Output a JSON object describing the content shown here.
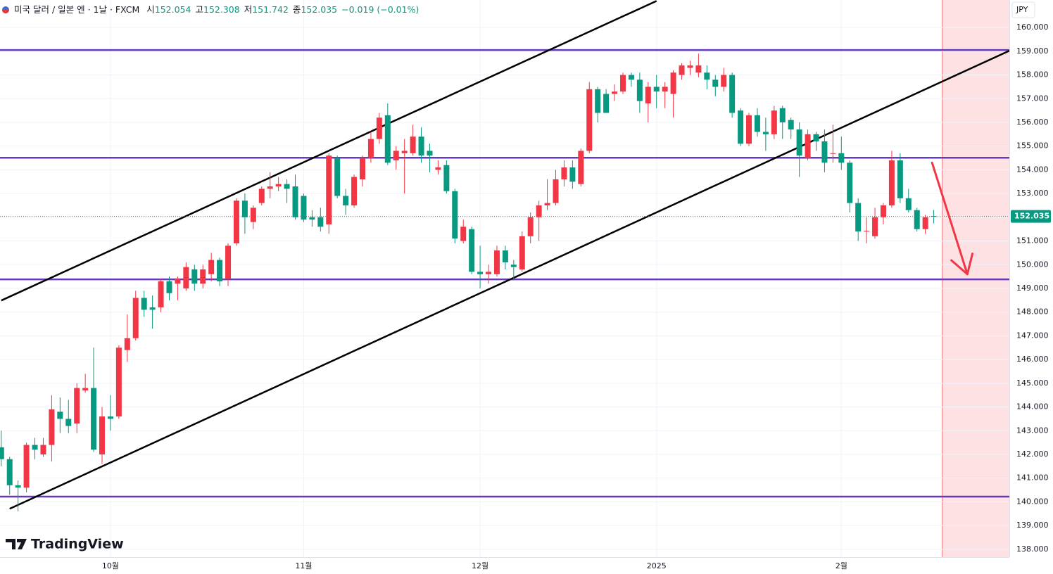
{
  "chart_data": {
    "type": "candlestick",
    "title": "미국 달러 / 일본 엔 · 1날 · FXCM",
    "legend": [
      {
        "label": "시",
        "value": 152.054
      },
      {
        "label": "고",
        "value": 152.308
      },
      {
        "label": "저",
        "value": 151.742
      },
      {
        "label": "종",
        "value": 152.035
      }
    ],
    "change": "−0.019 (−0.01%)",
    "currency": "JPY",
    "last_price": 152.035,
    "watermark": "TradingView",
    "up_color": "#f23645",
    "down_color": "#089981",
    "categories": [
      null,
      null,
      null,
      null,
      null,
      null,
      null,
      null,
      null,
      null,
      null,
      null,
      null,
      "10월",
      null,
      null,
      null,
      null,
      null,
      null,
      null,
      null,
      null,
      null,
      null,
      null,
      null,
      null,
      null,
      null,
      null,
      null,
      null,
      null,
      null,
      null,
      "11월",
      null,
      null,
      null,
      null,
      null,
      null,
      null,
      null,
      null,
      null,
      null,
      null,
      null,
      null,
      null,
      null,
      null,
      null,
      null,
      null,
      "12월",
      null,
      null,
      null,
      null,
      null,
      null,
      null,
      null,
      null,
      null,
      null,
      null,
      null,
      null,
      null,
      null,
      null,
      null,
      null,
      null,
      "2025",
      null,
      null,
      null,
      null,
      null,
      null,
      null,
      null,
      null,
      null,
      null,
      null,
      null,
      null,
      null,
      null,
      null,
      null,
      null,
      null,
      null,
      "2월",
      null,
      null,
      null,
      null,
      null,
      null,
      null,
      null,
      null,
      null,
      null
    ],
    "open": [
      142.3,
      141.8,
      140.7,
      140.6,
      142.4,
      142.0,
      142.4,
      143.8,
      143.5,
      143.3,
      144.7,
      144.8,
      142.0,
      143.6,
      143.6,
      146.4,
      146.9,
      148.6,
      148.2,
      148.2,
      149.3,
      149.2,
      149.0,
      149.8,
      149.2,
      149.6,
      150.2,
      149.4,
      150.9,
      152.7,
      151.8,
      152.6,
      153.2,
      153.3,
      153.4,
      153.3,
      152.9,
      152.0,
      152.0,
      151.7,
      154.5,
      152.9,
      152.5,
      153.6,
      154.5,
      155.3,
      156.3,
      154.4,
      154.7,
      154.7,
      155.4,
      154.8,
      154.0,
      154.2,
      153.1,
      151.0,
      151.5,
      149.7,
      149.6,
      149.6,
      150.6,
      150.0,
      149.8,
      151.2,
      152.0,
      152.5,
      152.6,
      153.6,
      154.1,
      153.4,
      154.8,
      157.4,
      157.2,
      157.2,
      157.3,
      158.0,
      157.8,
      156.8,
      157.5,
      157.3,
      157.2,
      158.0,
      158.3,
      158.1,
      158.1,
      157.8,
      157.5,
      158.0,
      156.5,
      155.1,
      156.3,
      155.6,
      155.5,
      156.6,
      156.1,
      155.7,
      154.5,
      155.5,
      155.2,
      154.7,
      154.7,
      154.3,
      152.6,
      151.4,
      151.2,
      152.0,
      152.5,
      154.4,
      152.8,
      152.3,
      151.5,
      152.054
    ],
    "high": [
      143.0,
      141.9,
      140.9,
      142.5,
      142.7,
      142.7,
      144.5,
      144.4,
      144.3,
      145.0,
      145.4,
      146.5,
      144.0,
      144.5,
      146.6,
      147.9,
      148.9,
      148.9,
      148.7,
      149.4,
      149.5,
      149.5,
      150.1,
      150.0,
      150.0,
      150.5,
      150.3,
      150.9,
      152.8,
      153.0,
      152.5,
      153.3,
      153.9,
      153.7,
      153.6,
      153.8,
      153.0,
      152.3,
      152.4,
      154.7,
      154.6,
      153.2,
      153.8,
      154.6,
      155.6,
      156.4,
      156.8,
      155.0,
      155.3,
      155.9,
      155.8,
      155.1,
      154.4,
      154.4,
      153.2,
      151.9,
      151.6,
      150.8,
      150.0,
      150.8,
      150.8,
      150.2,
      151.4,
      152.2,
      152.7,
      153.6,
      154.0,
      154.4,
      154.4,
      154.9,
      157.7,
      157.5,
      157.4,
      157.6,
      158.1,
      158.1,
      158.1,
      157.7,
      158.0,
      157.7,
      158.2,
      158.5,
      158.6,
      158.9,
      158.4,
      158.0,
      158.3,
      158.1,
      156.6,
      156.4,
      156.6,
      156.2,
      156.7,
      156.7,
      156.2,
      156.0,
      155.7,
      155.6,
      155.7,
      155.9,
      155.4,
      154.4,
      152.8,
      152.0,
      152.4,
      152.6,
      154.8,
      154.7,
      153.2,
      152.4,
      152.1,
      152.308
    ],
    "low": [
      141.5,
      140.3,
      139.6,
      140.4,
      141.8,
      141.9,
      141.7,
      142.9,
      142.9,
      142.9,
      144.6,
      142.1,
      141.6,
      143.0,
      143.5,
      145.9,
      146.8,
      147.8,
      147.3,
      148.0,
      148.5,
      148.5,
      148.9,
      148.9,
      149.0,
      149.3,
      149.1,
      149.1,
      150.8,
      151.3,
      151.5,
      152.5,
      152.8,
      153.1,
      152.6,
      151.9,
      151.8,
      151.6,
      151.4,
      151.3,
      152.8,
      152.1,
      152.4,
      153.3,
      154.3,
      155.1,
      154.2,
      154.0,
      153.0,
      154.6,
      154.3,
      153.9,
      153.8,
      153.0,
      150.9,
      150.9,
      149.6,
      149.0,
      149.2,
      149.5,
      149.8,
      149.4,
      149.7,
      150.9,
      151.0,
      152.3,
      152.5,
      153.3,
      153.2,
      153.3,
      154.7,
      156.0,
      156.4,
      156.9,
      157.2,
      157.5,
      156.4,
      156.0,
      156.6,
      156.6,
      156.2,
      157.8,
      158.0,
      157.9,
      157.4,
      157.1,
      157.3,
      156.2,
      155.0,
      155.0,
      155.4,
      154.8,
      155.3,
      155.3,
      155.3,
      153.7,
      154.4,
      154.8,
      153.9,
      154.3,
      154.0,
      152.2,
      151.0,
      150.9,
      151.1,
      151.7,
      152.4,
      152.6,
      152.2,
      151.4,
      151.3,
      151.742
    ],
    "close": [
      141.8,
      140.7,
      140.6,
      142.4,
      142.2,
      142.4,
      143.9,
      143.5,
      143.2,
      144.8,
      144.8,
      142.2,
      143.6,
      143.5,
      146.5,
      146.9,
      148.6,
      148.1,
      148.1,
      149.3,
      148.8,
      149.4,
      149.9,
      149.2,
      149.8,
      150.2,
      149.3,
      150.8,
      152.7,
      152.0,
      152.4,
      153.2,
      153.3,
      153.4,
      153.2,
      152.0,
      151.9,
      151.9,
      151.6,
      154.6,
      152.9,
      152.5,
      153.7,
      154.5,
      155.3,
      156.2,
      154.3,
      154.8,
      154.8,
      155.4,
      154.6,
      154.6,
      154.1,
      153.1,
      151.1,
      151.6,
      149.7,
      149.6,
      149.7,
      150.6,
      150.1,
      149.9,
      151.2,
      152.0,
      152.5,
      152.6,
      153.6,
      154.1,
      153.5,
      154.8,
      157.4,
      156.4,
      156.4,
      157.3,
      158.0,
      157.8,
      156.9,
      157.5,
      157.3,
      157.5,
      158.1,
      158.4,
      158.4,
      158.4,
      157.8,
      157.5,
      158.0,
      156.4,
      155.1,
      156.3,
      155.6,
      155.5,
      156.5,
      156.0,
      155.7,
      154.6,
      155.5,
      155.2,
      154.3,
      154.7,
      154.3,
      152.6,
      151.4,
      151.43,
      152.0,
      152.5,
      154.4,
      152.8,
      152.3,
      151.5,
      152.0,
      152.035
    ],
    "xlim": [
      -0.15,
      120
    ],
    "ylim": [
      137.67,
      161.16
    ],
    "yticks": [
      {
        "value": 138,
        "label": "138.000"
      },
      {
        "value": 139,
        "label": "139.000"
      },
      {
        "value": 140,
        "label": "140.000"
      },
      {
        "value": 141,
        "label": "141.000"
      },
      {
        "value": 142,
        "label": "142.000"
      },
      {
        "value": 143,
        "label": "143.000"
      },
      {
        "value": 144,
        "label": "144.000"
      },
      {
        "value": 145,
        "label": "145.000"
      },
      {
        "value": 146,
        "label": "146.000"
      },
      {
        "value": 147,
        "label": "147.000"
      },
      {
        "value": 148,
        "label": "148.000"
      },
      {
        "value": 149,
        "label": "149.000"
      },
      {
        "value": 150,
        "label": "150.000"
      },
      {
        "value": 151,
        "label": "151.000"
      },
      {
        "value": 152,
        "label": "152.000"
      },
      {
        "value": 153,
        "label": "153.000"
      },
      {
        "value": 154,
        "label": "154.000"
      },
      {
        "value": 155,
        "label": "155.000"
      },
      {
        "value": 156,
        "label": "156.000"
      },
      {
        "value": 157,
        "label": "157.000"
      },
      {
        "value": 158,
        "label": "158.000"
      },
      {
        "value": 159,
        "label": "159.000"
      },
      {
        "value": 160,
        "label": "160.000"
      }
    ],
    "grid": true,
    "horizontal_lines": {
      "color": "#673ab7",
      "values": [
        159.05,
        154.51,
        149.38,
        140.22
      ]
    },
    "trend_lines": {
      "color": "#000000",
      "lines": [
        {
          "x": [
            0,
            78
          ],
          "y": [
            148.49,
            161.12
          ]
        },
        {
          "x": [
            1,
            120
          ],
          "y": [
            139.71,
            159.02
          ]
        }
      ]
    },
    "forecast_zone": {
      "from": 112,
      "color": "#f23645"
    },
    "arrow": {
      "color": "#f23645",
      "x": [
        110.8,
        115.0
      ],
      "y": [
        154.3,
        149.6
      ]
    }
  }
}
